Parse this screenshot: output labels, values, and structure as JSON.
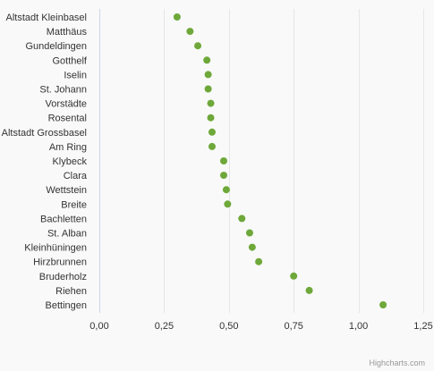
{
  "chart_data": {
    "type": "scatter",
    "orientation": "horizontal-categories",
    "categories": [
      "Altstadt Kleinbasel",
      "Matthäus",
      "Gundeldingen",
      "Gotthelf",
      "Iselin",
      "St. Johann",
      "Vorstädte",
      "Rosental",
      "Altstadt Grossbasel",
      "Am Ring",
      "Klybeck",
      "Clara",
      "Wettstein",
      "Breite",
      "Bachletten",
      "St. Alban",
      "Kleinhüningen",
      "Hirzbrunnen",
      "Bruderholz",
      "Riehen",
      "Bettingen"
    ],
    "values": [
      0.3,
      0.35,
      0.38,
      0.415,
      0.42,
      0.42,
      0.43,
      0.43,
      0.435,
      0.435,
      0.48,
      0.48,
      0.49,
      0.495,
      0.55,
      0.58,
      0.59,
      0.615,
      0.75,
      0.81,
      1.095
    ],
    "value_axis": {
      "min": 0,
      "max": 1.25,
      "tick_values": [
        0,
        0.25,
        0.5,
        0.75,
        1.0,
        1.25
      ],
      "tick_labels": [
        "0,00",
        "0,25",
        "0,50",
        "0,75",
        "1,00",
        "1,25"
      ]
    },
    "grid": true,
    "legend": "none",
    "marker_color": "#6ea83a"
  },
  "credits": "Highcharts.com"
}
